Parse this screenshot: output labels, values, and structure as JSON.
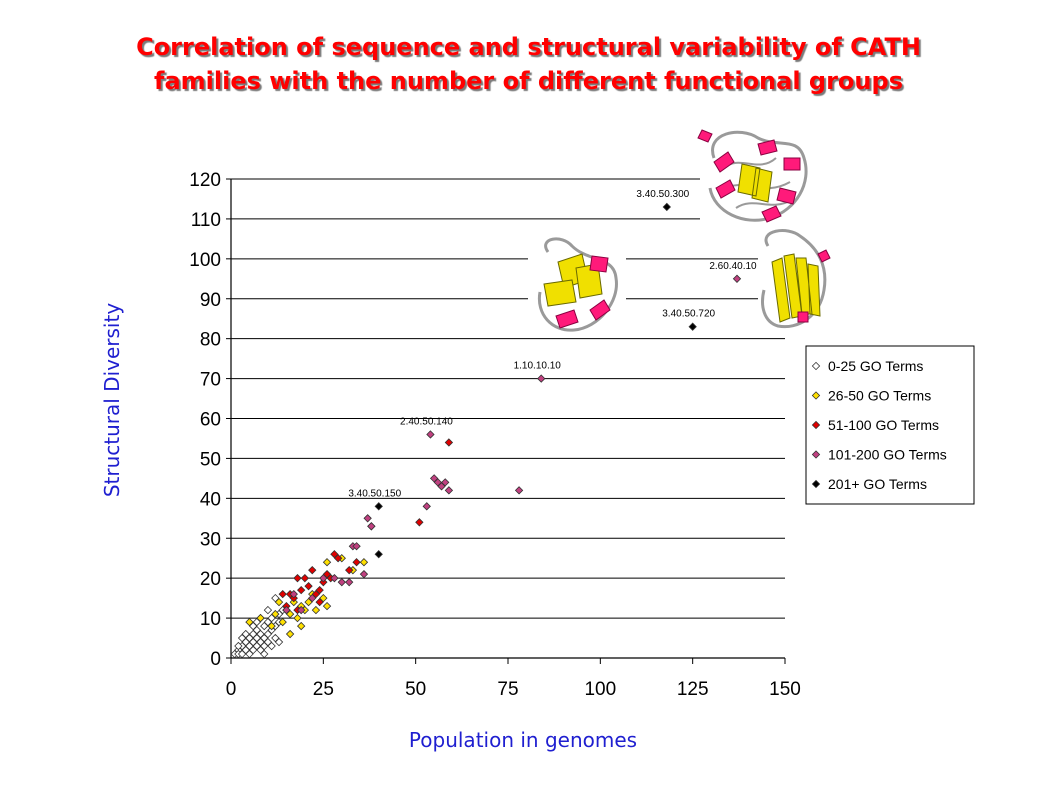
{
  "title": {
    "line1": "Correlation of sequence and structural variability of CATH",
    "line2": "families with the number of different functional groups"
  },
  "chart_data": {
    "type": "scatter",
    "xlabel": "Population in genomes",
    "ylabel": "Structural Diversity",
    "xlim": [
      0,
      150
    ],
    "ylim": [
      0,
      120
    ],
    "xticks": [
      0,
      25,
      50,
      75,
      100,
      125,
      150
    ],
    "yticks": [
      0,
      10,
      20,
      30,
      40,
      50,
      60,
      70,
      80,
      90,
      100,
      110,
      120
    ],
    "grid": "horizontal",
    "legend_position": "right",
    "series": [
      {
        "name": "0-25 GO Terms",
        "color": "#ffffff",
        "points": [
          [
            1,
            1
          ],
          [
            2,
            2
          ],
          [
            2,
            1
          ],
          [
            3,
            3
          ],
          [
            3,
            1
          ],
          [
            4,
            2
          ],
          [
            4,
            4
          ],
          [
            5,
            3
          ],
          [
            5,
            5
          ],
          [
            5,
            1
          ],
          [
            6,
            2
          ],
          [
            6,
            4
          ],
          [
            6,
            6
          ],
          [
            7,
            3
          ],
          [
            7,
            5
          ],
          [
            7,
            7
          ],
          [
            8,
            4
          ],
          [
            8,
            6
          ],
          [
            8,
            2
          ],
          [
            9,
            5
          ],
          [
            9,
            8
          ],
          [
            9,
            3
          ],
          [
            10,
            6
          ],
          [
            10,
            9
          ],
          [
            10,
            4
          ],
          [
            11,
            7
          ],
          [
            11,
            10
          ],
          [
            12,
            5
          ],
          [
            12,
            8
          ],
          [
            13,
            9
          ],
          [
            13,
            11
          ],
          [
            14,
            12
          ],
          [
            11,
            3
          ],
          [
            10,
            12
          ],
          [
            12,
            15
          ],
          [
            8,
            10
          ],
          [
            7,
            9
          ],
          [
            6,
            8
          ],
          [
            4,
            6
          ],
          [
            3,
            5
          ],
          [
            2,
            3
          ],
          [
            9,
            1
          ],
          [
            13,
            4
          ]
        ]
      },
      {
        "name": "26-50 GO Terms",
        "color": "#ffe000",
        "points": [
          [
            5,
            9
          ],
          [
            8,
            10
          ],
          [
            11,
            8
          ],
          [
            12,
            11
          ],
          [
            14,
            9
          ],
          [
            15,
            12
          ],
          [
            16,
            6
          ],
          [
            17,
            14
          ],
          [
            18,
            10
          ],
          [
            19,
            8
          ],
          [
            20,
            12
          ],
          [
            21,
            14
          ],
          [
            22,
            16
          ],
          [
            23,
            12
          ],
          [
            25,
            15
          ],
          [
            26,
            13
          ],
          [
            26,
            24
          ],
          [
            30,
            25
          ],
          [
            33,
            22
          ],
          [
            36,
            24
          ],
          [
            13,
            14
          ],
          [
            16,
            11
          ],
          [
            19,
            13
          ]
        ]
      },
      {
        "name": "51-100 GO Terms",
        "color": "#e00000",
        "points": [
          [
            14,
            16
          ],
          [
            15,
            13
          ],
          [
            17,
            15
          ],
          [
            18,
            20
          ],
          [
            19,
            17
          ],
          [
            20,
            20
          ],
          [
            21,
            18
          ],
          [
            22,
            22
          ],
          [
            23,
            16
          ],
          [
            24,
            14
          ],
          [
            25,
            19
          ],
          [
            26,
            21
          ],
          [
            27,
            20
          ],
          [
            28,
            26
          ],
          [
            29,
            25
          ],
          [
            32,
            22
          ],
          [
            34,
            24
          ],
          [
            38,
            33
          ],
          [
            51,
            34
          ],
          [
            59,
            54
          ],
          [
            16,
            16
          ],
          [
            18,
            12
          ],
          [
            24,
            17
          ]
        ]
      },
      {
        "name": "101-200 GO Terms",
        "color": "#c04080",
        "points": [
          [
            15,
            12
          ],
          [
            17,
            16
          ],
          [
            19,
            12
          ],
          [
            22,
            15
          ],
          [
            25,
            20
          ],
          [
            28,
            20
          ],
          [
            30,
            19
          ],
          [
            32,
            19
          ],
          [
            33,
            28
          ],
          [
            34,
            28
          ],
          [
            36,
            21
          ],
          [
            37,
            35
          ],
          [
            38,
            33
          ],
          [
            53,
            38
          ],
          [
            54,
            56
          ],
          [
            55,
            45
          ],
          [
            56,
            44
          ],
          [
            57,
            43
          ],
          [
            58,
            44
          ],
          [
            59,
            42
          ],
          [
            78,
            42
          ],
          [
            84,
            70
          ],
          [
            137,
            95
          ]
        ]
      },
      {
        "name": "201+ GO Terms",
        "color": "#000000",
        "points": [
          [
            40,
            38
          ],
          [
            40,
            26
          ],
          [
            118,
            113
          ],
          [
            125,
            83
          ]
        ]
      }
    ],
    "annotations": [
      {
        "label": "3.40.50.300",
        "x": 118,
        "y": 113
      },
      {
        "label": "2.60.40.10",
        "x": 137,
        "y": 95
      },
      {
        "label": "3.40.50.720",
        "x": 125,
        "y": 83
      },
      {
        "label": "1.10.10.10",
        "x": 84,
        "y": 70
      },
      {
        "label": "2.40.50.140",
        "x": 54,
        "y": 56
      },
      {
        "label": "3.40.50.150",
        "x": 40,
        "y": 38
      }
    ]
  },
  "protein_images": [
    {
      "name": "protein-structure-3-40-50-300",
      "colors": [
        "#ff1a7a",
        "#f0e000",
        "#9a9a9a"
      ]
    },
    {
      "name": "protein-structure-left",
      "colors": [
        "#ff1a7a",
        "#f0e000",
        "#9a9a9a"
      ]
    },
    {
      "name": "protein-structure-right",
      "colors": [
        "#ff1a7a",
        "#f0e000",
        "#9a9a9a"
      ]
    }
  ]
}
